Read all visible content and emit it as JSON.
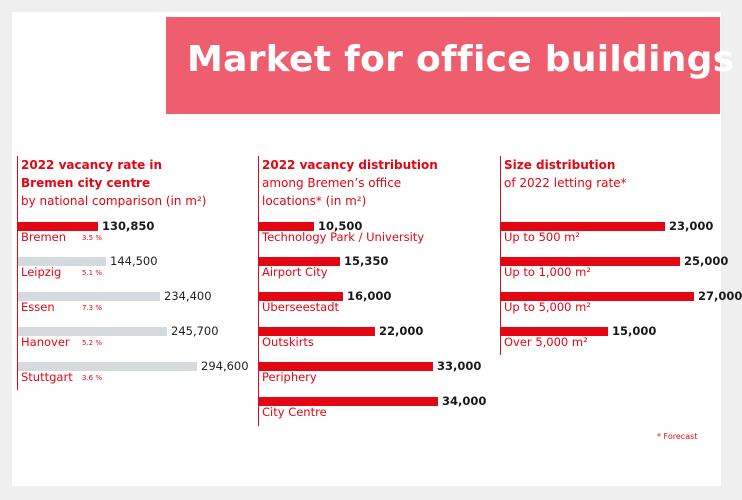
{
  "title": "Market for office buildings",
  "footnote": "* Forecast",
  "colors": {
    "accent": "#e30613",
    "banner": "#ef5e6e",
    "neutral_bar": "#d5dadf",
    "background": "#efeff0"
  },
  "chart_data": [
    {
      "type": "bar",
      "orientation": "horizontal",
      "title": "2022 vacancy rate in Bremen city centre",
      "subtitle": "by national comparison (in m²)",
      "categories": [
        "Bremen",
        "Leipzig",
        "Essen",
        "Hanover",
        "Stuttgart"
      ],
      "values": [
        130850,
        144500,
        234400,
        245700,
        294600
      ],
      "value_labels": [
        "130,850",
        "144,500",
        "234,400",
        "245,700",
        "294,600"
      ],
      "rates": [
        "3.5 %",
        "5.1 %",
        "7.3 %",
        "5.2 %",
        "3.6 %"
      ],
      "highlight": "Bremen",
      "xlim": [
        0,
        294600
      ]
    },
    {
      "type": "bar",
      "orientation": "horizontal",
      "title": "2022 vacancy distribution",
      "subtitle": "among Bremen’s office locations* (in m²)",
      "categories": [
        "Technology Park / University",
        "Airport City",
        "Überseestadt",
        "Outskirts",
        "Periphery",
        "City Centre"
      ],
      "values": [
        10500,
        15350,
        16000,
        22000,
        33000,
        34000
      ],
      "value_labels": [
        "10,500",
        "15,350",
        "16,000",
        "22,000",
        "33,000",
        "34,000"
      ],
      "xlim": [
        0,
        34000
      ]
    },
    {
      "type": "bar",
      "orientation": "horizontal",
      "title": "Size distribution",
      "subtitle": "of 2022 letting rate*",
      "categories": [
        "Up to 500 m²",
        "Up to 1,000 m²",
        "Up to 5,000 m²",
        "Over 5,000 m²"
      ],
      "values": [
        23000,
        25000,
        27000,
        15000
      ],
      "value_labels": [
        "23,000",
        "25,000",
        "27,000",
        "15,000"
      ],
      "xlim": [
        0,
        27000
      ]
    }
  ]
}
